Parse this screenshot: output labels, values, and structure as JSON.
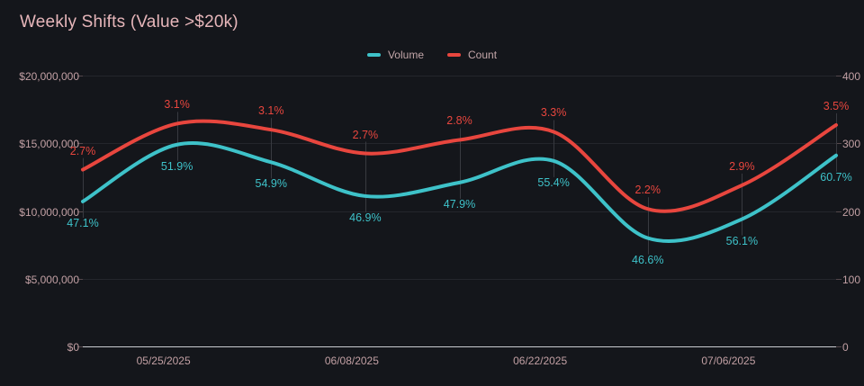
{
  "panel": {
    "title": "Weekly Shifts (Value >$20k)"
  },
  "legend": {
    "items": [
      {
        "label": "Volume",
        "color": "#3ec2c9"
      },
      {
        "label": "Count",
        "color": "#e8463e"
      }
    ]
  },
  "colors": {
    "background": "#14161b",
    "title": "#e6b6ba",
    "axis_text": "#c2a0a4",
    "gridline": "#24262c",
    "axis_line": "#c9cad0",
    "connector": "#383a40",
    "volume": "#3ec2c9",
    "count": "#e8463e"
  },
  "chart_data": {
    "type": "line",
    "title": "Weekly Shifts (Value >$20k)",
    "interpolation": "smooth",
    "grid": true,
    "legend_position": "top-center",
    "num_points": 9,
    "x_tick_labels": [
      "05/25/2025",
      "06/08/2025",
      "06/22/2025",
      "07/06/2025"
    ],
    "x_tick_point_indices": [
      1,
      3,
      5,
      7
    ],
    "y_axis_left": {
      "tick_labels": [
        "$20,000,000",
        "$15,000,000",
        "$10,000,000",
        "$5,000,000",
        "$0"
      ],
      "tick_values": [
        20000000,
        15000000,
        10000000,
        5000000,
        0
      ],
      "min": 0,
      "max": 20000000
    },
    "y_axis_right": {
      "tick_labels": [
        "400",
        "300",
        "200",
        "100",
        "0"
      ],
      "tick_values": [
        400,
        300,
        200,
        100,
        0
      ],
      "min": 0,
      "max": 400
    },
    "series": [
      {
        "name": "Volume",
        "axis": "left",
        "color": "#3ec2c9",
        "values": [
          10700000,
          14900000,
          13600000,
          11100000,
          12100000,
          13700000,
          8000000,
          9400000,
          14100000
        ],
        "point_labels": [
          "47.1%",
          "51.9%",
          "54.9%",
          "46.9%",
          "47.9%",
          "55.4%",
          "46.6%",
          "56.1%",
          "60.7%"
        ],
        "label_placement": "below"
      },
      {
        "name": "Count",
        "axis": "right",
        "color": "#e8463e",
        "values": [
          261,
          329,
          320,
          285,
          305,
          317,
          203,
          238,
          327
        ],
        "point_labels": [
          "2.7%",
          "3.1%",
          "3.1%",
          "2.7%",
          "2.8%",
          "3.3%",
          "2.2%",
          "2.9%",
          "3.5%"
        ],
        "label_placement": "above"
      }
    ]
  }
}
